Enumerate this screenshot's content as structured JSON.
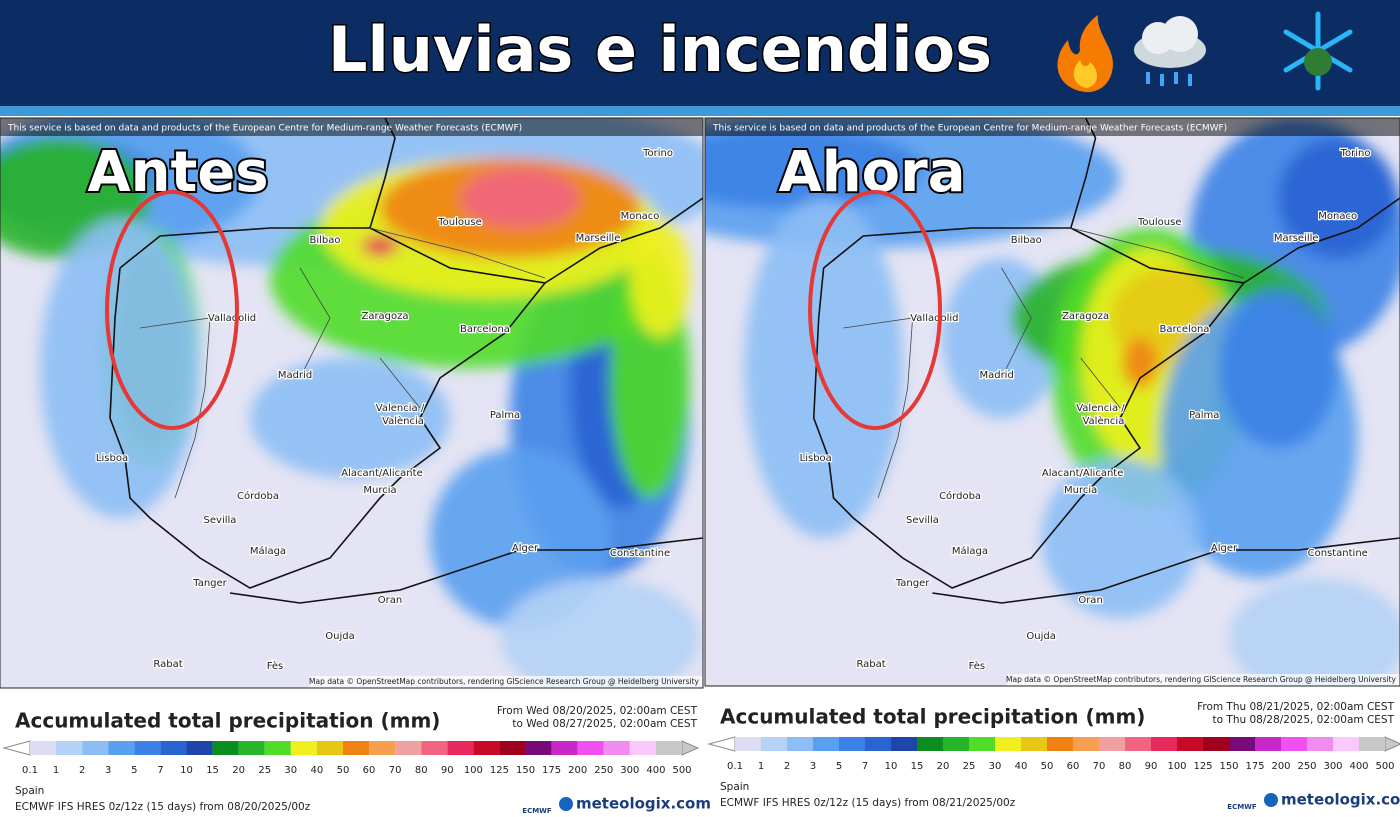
{
  "header": {
    "title": "Lluvias e incendios"
  },
  "legend": {
    "title": "Accumulated total precipitation (mm)",
    "ticks": [
      0.1,
      1,
      2,
      3,
      5,
      7,
      10,
      15,
      20,
      25,
      30,
      40,
      50,
      60,
      70,
      80,
      90,
      100,
      125,
      150,
      175,
      200,
      250,
      300,
      400,
      500
    ],
    "colors": [
      "#dcdcf2",
      "#b4d2f5",
      "#8cbef5",
      "#5aa0f0",
      "#3c82e6",
      "#2864d2",
      "#1e46aa",
      "#0a8c1e",
      "#28b428",
      "#50dc28",
      "#f0f01e",
      "#e6c814",
      "#f08214",
      "#f5a050",
      "#f0a0a0",
      "#f06482",
      "#e6285a",
      "#c80a28",
      "#a0001e",
      "#780a78",
      "#c828c8",
      "#f050f0",
      "#f08cf0",
      "#fac8fa",
      "#c8c8c8"
    ]
  },
  "attribution": "This service is based on data and products of the European Centre for Medium-range Weather Forecasts (ECMWF)",
  "map_credit": "Map data © OpenStreetMap contributors, rendering GIScience Research Group @ Heidelberg University",
  "cities": [
    "Bilbao",
    "Toulouse",
    "Marseille",
    "Monaco",
    "Torino",
    "Valladolid",
    "Zaragoza",
    "Barcelona",
    "Madrid",
    "Valencia /",
    "València",
    "Palma",
    "Lisboa",
    "Alacant/Alicante",
    "Murcia",
    "Córdoba",
    "Sevilla",
    "Málaga",
    "Alger",
    "Constantine",
    "Tanger",
    "Oran",
    "Oujda",
    "Rabat",
    "Fès"
  ],
  "panels": [
    {
      "label": "Antes",
      "from": "From Wed 08/20/2025, 02:00am CEST",
      "to": "to Wed 08/27/2025, 02:00am CEST",
      "region": "Spain",
      "model": "ECMWF IFS HRES 0z/12z (15 days) from 08/20/2025/00z",
      "ecmwf": "ECMWF",
      "brand": "meteologix.com"
    },
    {
      "label": "Ahora",
      "from": "From Thu 08/21/2025, 02:00am CEST",
      "to": "to Thu 08/28/2025, 02:00am CEST",
      "region": "Spain",
      "model": "ECMWF IFS HRES 0z/12z (15 days) from 08/21/2025/00z",
      "ecmwf": "ECMWF",
      "brand": "meteologix.com"
    }
  ]
}
